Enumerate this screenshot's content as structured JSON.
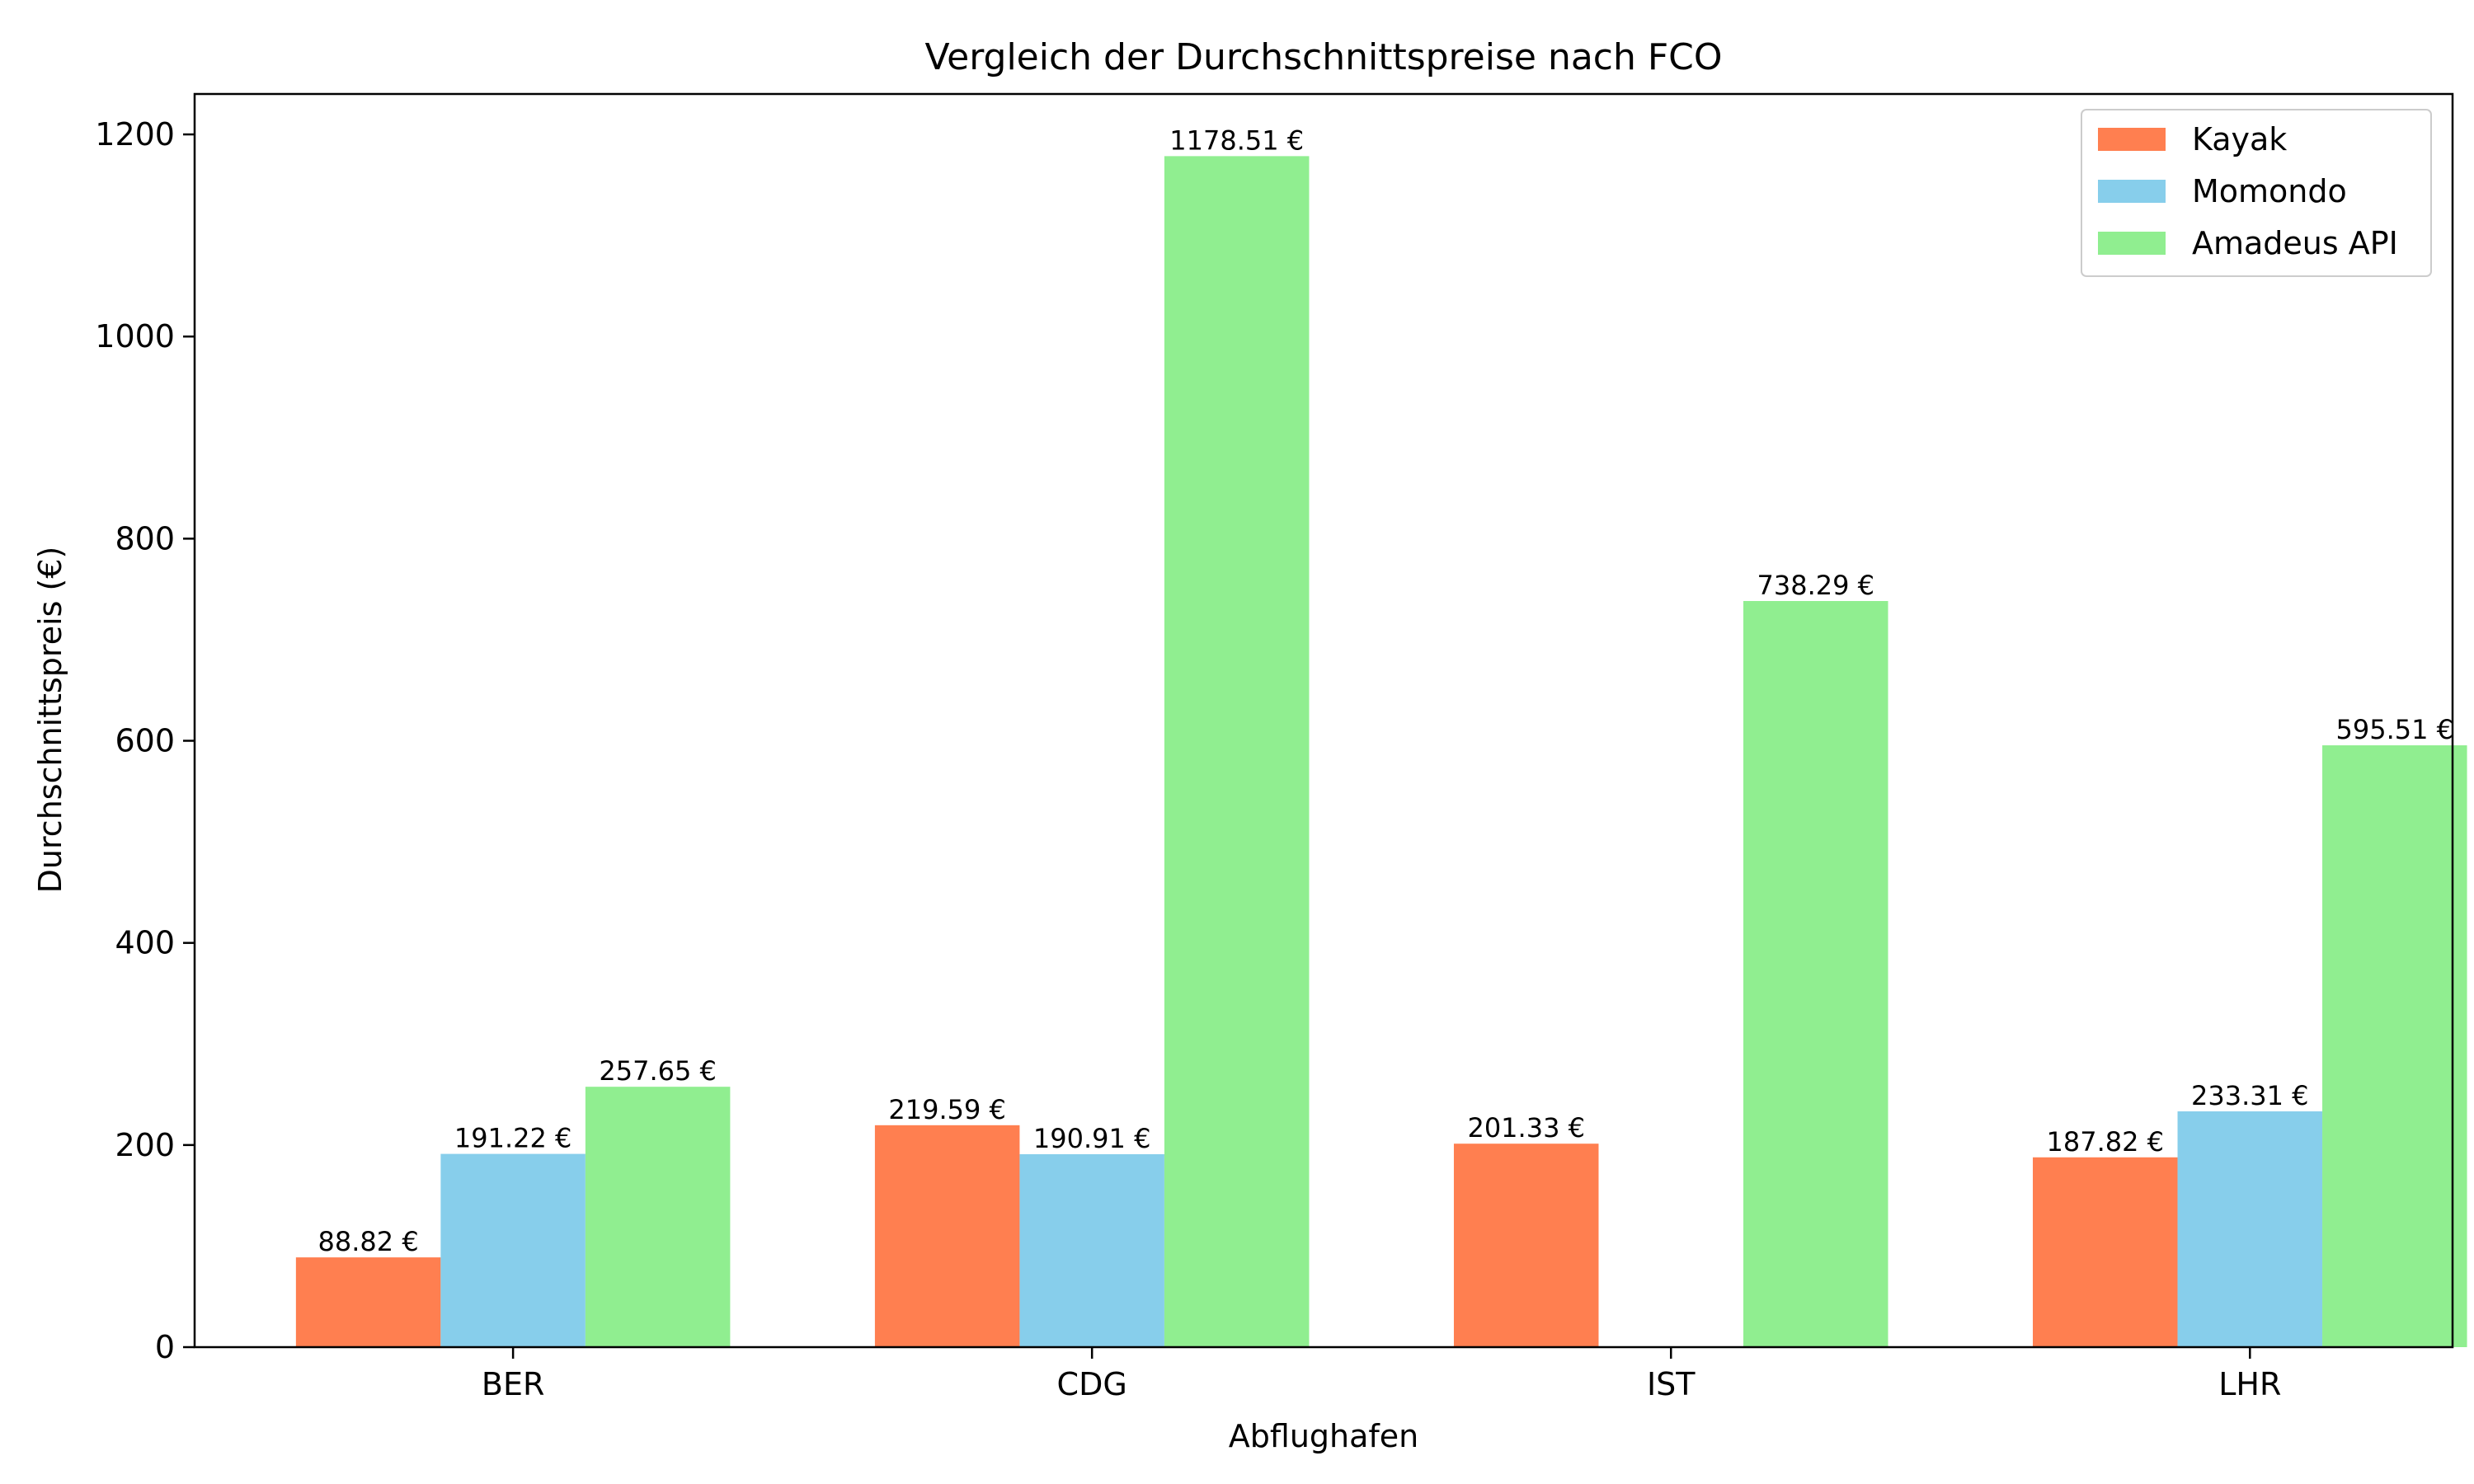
{
  "chart_data": {
    "type": "bar",
    "title": "Vergleich der Durchschnittspreise nach FCO",
    "xlabel": "Abflughafen",
    "ylabel": "Durchschnittspreis (€)",
    "categories": [
      "BER",
      "CDG",
      "IST",
      "LHR"
    ],
    "ylim": [
      0,
      1240
    ],
    "yticks": [
      0,
      200,
      400,
      600,
      800,
      1000,
      1200
    ],
    "grid": false,
    "legend_position": "top-right",
    "value_suffix": " €",
    "series": [
      {
        "name": "Kayak",
        "color": "#ff7f50",
        "values": [
          88.82,
          219.59,
          201.33,
          187.82
        ]
      },
      {
        "name": "Momondo",
        "color": "#87ceeb",
        "values": [
          191.22,
          190.91,
          null,
          233.31
        ]
      },
      {
        "name": "Amadeus API",
        "color": "#90ee90",
        "values": [
          257.65,
          1178.51,
          738.29,
          595.51
        ]
      }
    ]
  }
}
